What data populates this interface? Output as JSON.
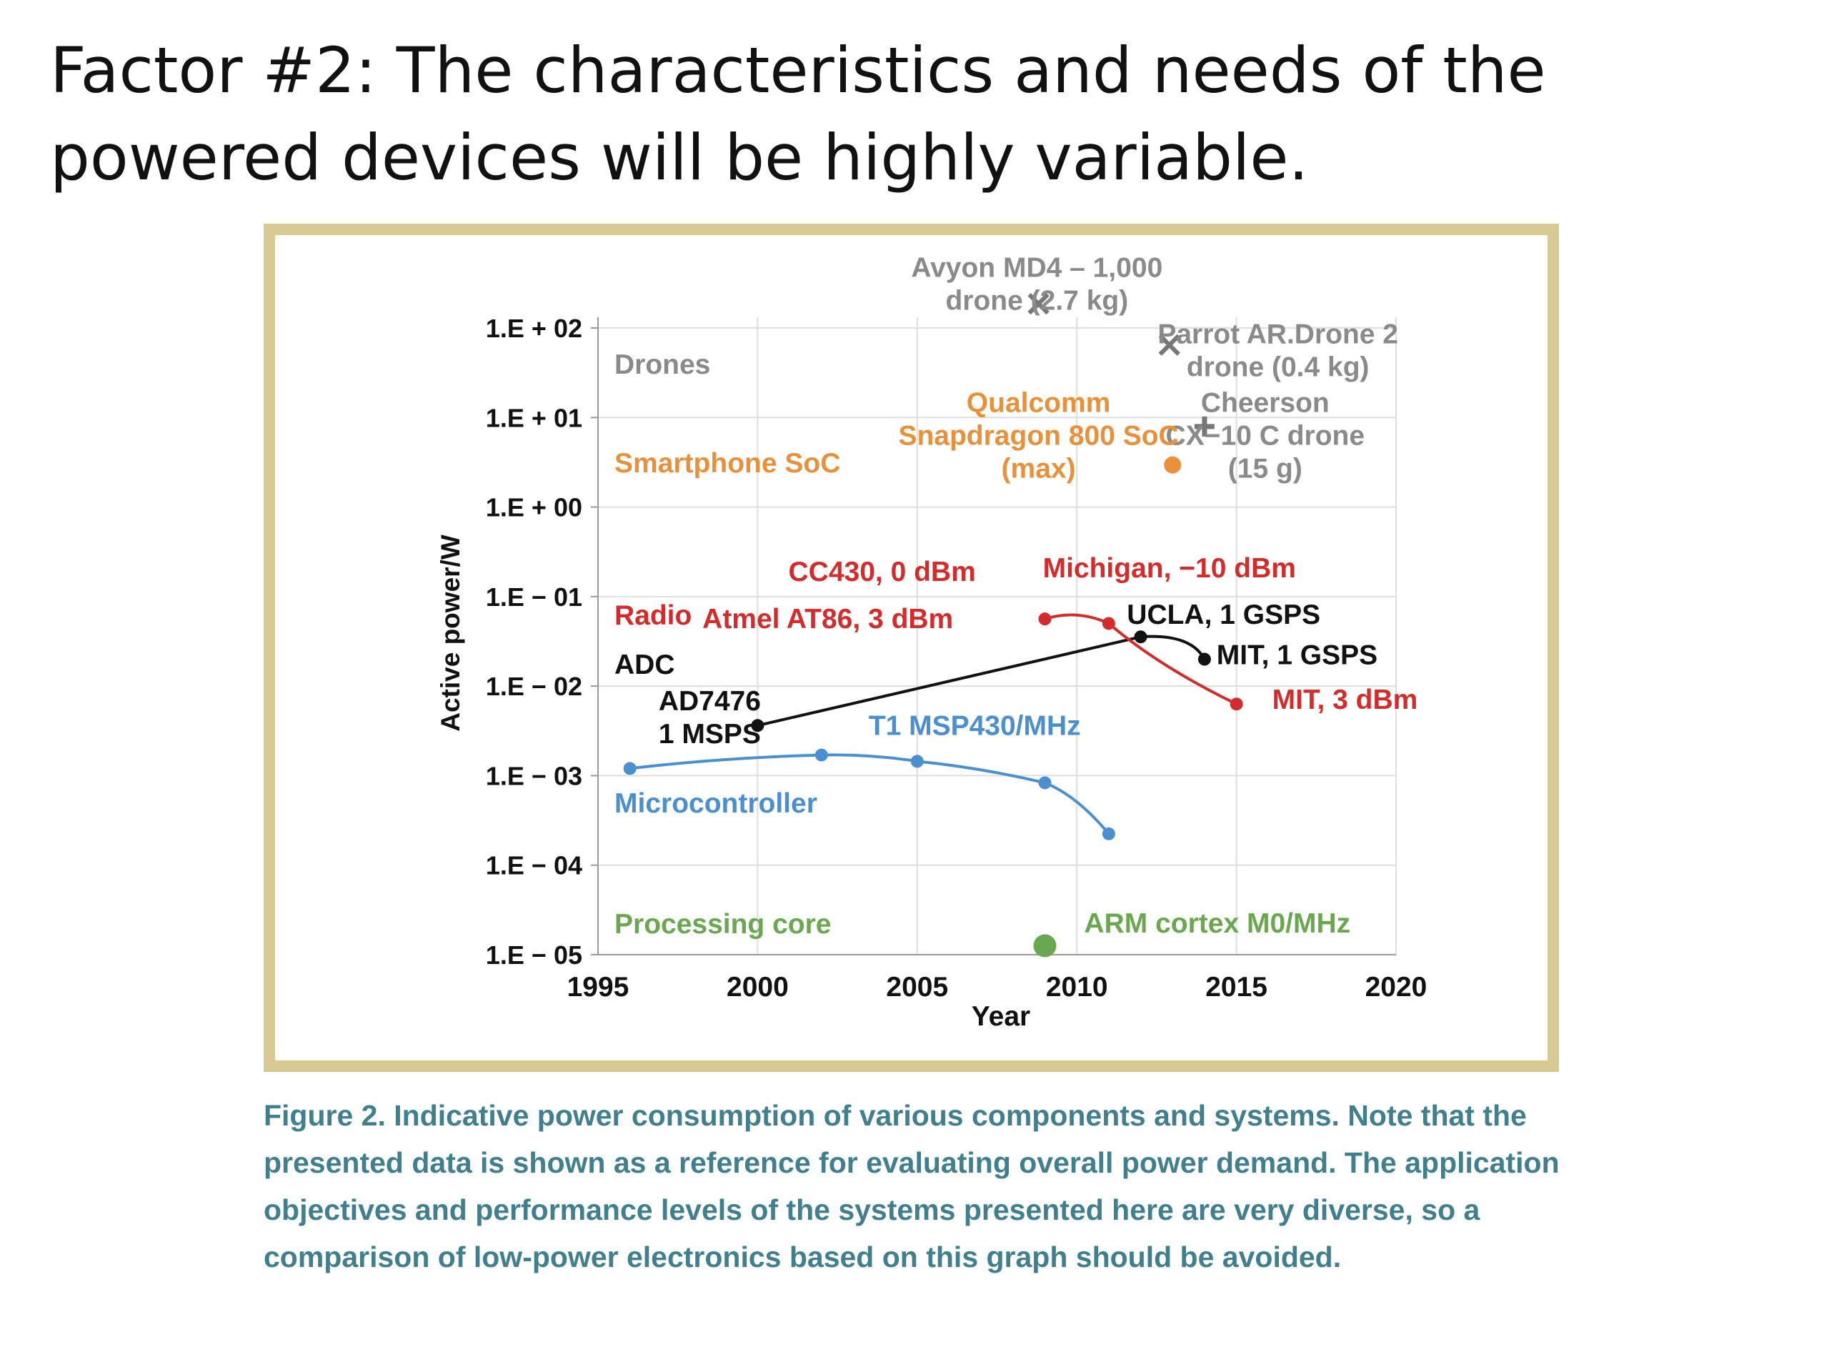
{
  "slide": {
    "title": "Factor #2: The characteristics and needs of the powered devices will be highly variable."
  },
  "caption": {
    "text": "Figure 2. Indicative power consumption of various components and systems. Note that the presented data is shown as a reference for evaluating overall power demand. The application objectives and performance levels of the systems presented here are very diverse, so a comparison of low-power electronics based on this graph should be avoided."
  },
  "chart_data": {
    "type": "scatter",
    "title": "",
    "xlabel": "Year",
    "ylabel": "Active power/W",
    "xlim": [
      1995,
      2020
    ],
    "ylim_log10": [
      -5,
      2
    ],
    "x_ticks": [
      1995,
      2000,
      2005,
      2010,
      2015,
      2020
    ],
    "y_ticks": [
      {
        "exp": 2,
        "label": "1.E + 02"
      },
      {
        "exp": 1,
        "label": "1.E + 01"
      },
      {
        "exp": 0,
        "label": "1.E + 00"
      },
      {
        "exp": -1,
        "label": "1.E − 01"
      },
      {
        "exp": -2,
        "label": "1.E − 02"
      },
      {
        "exp": -3,
        "label": "1.E − 03"
      },
      {
        "exp": -4,
        "label": "1.E − 04"
      },
      {
        "exp": -5,
        "label": "1.E − 05"
      }
    ],
    "grid": true,
    "colors": {
      "drones": "#8a8a8a",
      "smartphone": "#e8913a",
      "radio": "#d42b2b",
      "adc": "#111111",
      "microcontroller": "#4a8fd0",
      "processing": "#6aa84f"
    },
    "categories": [
      {
        "key": "drones",
        "label": "Drones",
        "log10": 1.6
      },
      {
        "key": "smartphone",
        "label": "Smartphone SoC",
        "log10": 0.5
      },
      {
        "key": "radio",
        "label": "Radio",
        "log10": -1.2
      },
      {
        "key": "adc",
        "label": "ADC",
        "log10": -1.75
      },
      {
        "key": "microcontroller",
        "label": "Microcontroller",
        "log10": -3.3
      },
      {
        "key": "processing",
        "label": "Processing core",
        "log10": -4.65
      }
    ],
    "series": [
      {
        "name": "Microcontroller",
        "key": "microcontroller",
        "line": true,
        "points": [
          {
            "x": 1996,
            "log10": -2.92
          },
          {
            "x": 2002,
            "log10": -2.77
          },
          {
            "x": 2005,
            "log10": -2.84
          },
          {
            "x": 2009,
            "log10": -3.08
          },
          {
            "x": 2011,
            "log10": -3.65
          }
        ]
      },
      {
        "name": "ADC",
        "key": "adc",
        "line": true,
        "points": [
          {
            "x": 2000,
            "log10": -2.44
          },
          {
            "x": 2012,
            "log10": -1.45
          },
          {
            "x": 2014,
            "log10": -1.7
          }
        ]
      },
      {
        "name": "Radio",
        "key": "radio",
        "line": true,
        "points": [
          {
            "x": 2009,
            "log10": -1.25
          },
          {
            "x": 2011,
            "log10": -1.3
          },
          {
            "x": 2015,
            "log10": -2.2
          }
        ]
      },
      {
        "name": "Smartphone SoC",
        "key": "smartphone",
        "line": false,
        "points": [
          {
            "x": 2013,
            "log10": 0.47
          }
        ]
      },
      {
        "name": "Processing core",
        "key": "processing",
        "line": false,
        "points": [
          {
            "x": 2009,
            "log10": -4.9
          }
        ]
      }
    ],
    "annotations": [
      {
        "key": "drones",
        "lines": [
          "Avyon MD4 – 1,000",
          "drone (2.7 kg)"
        ],
        "x": 2008.75,
        "log10": 2.49,
        "marker": "x",
        "mx": 2008.8,
        "mlog10": 2.27
      },
      {
        "key": "drones",
        "lines": [
          "Parrot AR.Drone 2",
          "drone (0.4 kg)"
        ],
        "x": 2016.3,
        "log10": 1.75,
        "marker": "x",
        "mx": 2012.9,
        "mlog10": 1.81
      },
      {
        "key": "drones",
        "lines": [
          "Cheerson",
          "CX−10 C drone",
          "(15 g)"
        ],
        "x": 2015.9,
        "log10": 0.8,
        "marker": "plus",
        "mx": 2014.0,
        "mlog10": 0.9
      },
      {
        "key": "smartphone",
        "lines": [
          "Qualcomm",
          "Snapdragon 800 SoC",
          "(max)"
        ],
        "x": 2008.8,
        "log10": 0.8
      },
      {
        "key": "radio",
        "lines": [
          "CC430, 0 dBm"
        ],
        "x": 2003.9,
        "log10": -0.72
      },
      {
        "key": "radio",
        "lines": [
          "Atmel AT86, 3 dBm"
        ],
        "x": 2002.2,
        "log10": -1.25
      },
      {
        "key": "radio",
        "lines": [
          "Michigan, −10 dBm"
        ],
        "x": 2012.9,
        "log10": -0.68
      },
      {
        "key": "radio",
        "lines": [
          "MIT, 3 dBm"
        ],
        "x": 2018.4,
        "log10": -2.15
      },
      {
        "key": "adc",
        "lines": [
          "UCLA, 1 GSPS"
        ],
        "x": 2014.6,
        "log10": -1.2
      },
      {
        "key": "adc",
        "lines": [
          "MIT, 1 GSPS"
        ],
        "x": 2016.9,
        "log10": -1.65
      },
      {
        "key": "adc",
        "lines": [
          "AD7476",
          "1 MSPS"
        ],
        "x": 1998.5,
        "log10": -2.35
      },
      {
        "key": "microcontroller",
        "lines": [
          "T1 MSP430/MHz"
        ],
        "x": 2006.8,
        "log10": -2.44
      },
      {
        "key": "processing",
        "lines": [
          "ARM cortex M0/MHz"
        ],
        "x": 2014.4,
        "log10": -4.65
      }
    ]
  }
}
